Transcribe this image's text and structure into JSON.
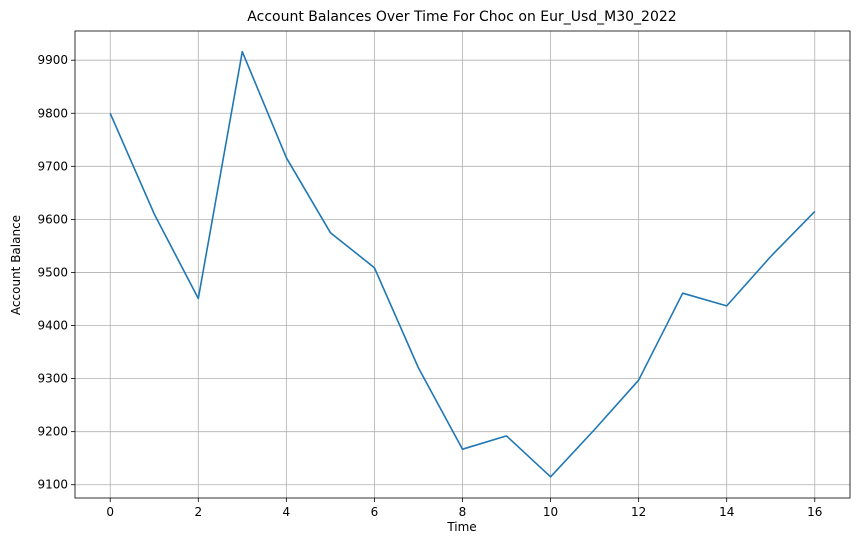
{
  "chart_data": {
    "type": "line",
    "title": "Account Balances Over Time For Choc on Eur_Usd_M30_2022",
    "xlabel": "Time",
    "ylabel": "Account Balance",
    "xlim": [
      -0.8,
      16.8
    ],
    "ylim": [
      9075,
      9955
    ],
    "xticks": [
      0,
      2,
      4,
      6,
      8,
      10,
      12,
      14,
      16
    ],
    "yticks": [
      9100,
      9200,
      9300,
      9400,
      9500,
      9600,
      9700,
      9800,
      9900
    ],
    "grid": true,
    "series": [
      {
        "color": "#1f77b4",
        "x": [
          0,
          1,
          2,
          3,
          4,
          5,
          6,
          7,
          8,
          9,
          10,
          11,
          12,
          13,
          14,
          15,
          16
        ],
        "values": [
          9800,
          9610,
          9451,
          9916,
          9716,
          9575,
          9509,
          9320,
          9167,
          9192,
          9115,
          9204,
          9297,
          9461,
          9437,
          9530,
          9615
        ]
      }
    ]
  }
}
